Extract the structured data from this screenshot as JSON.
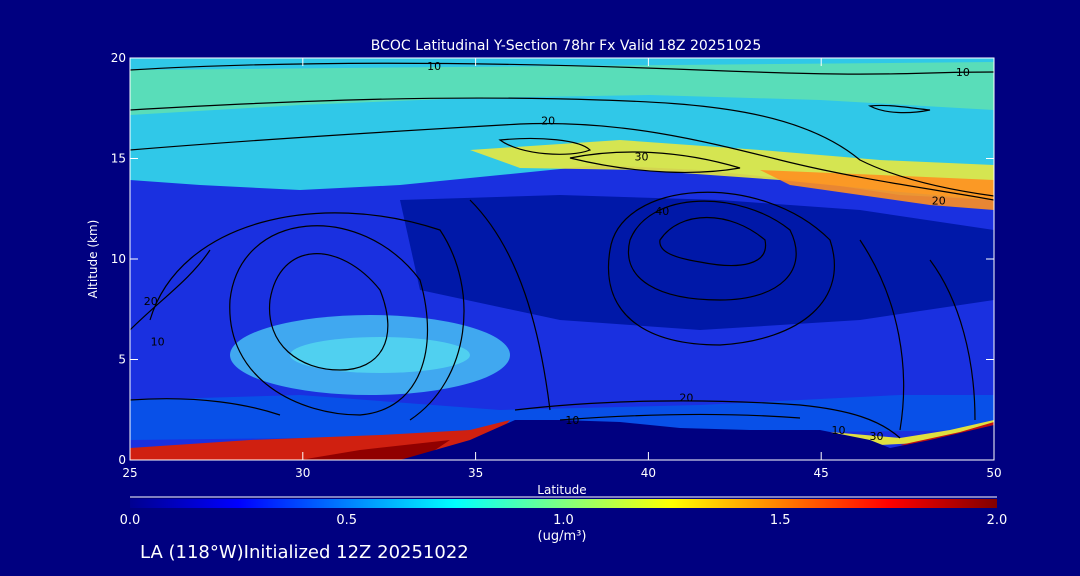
{
  "chart_data": {
    "type": "heatmap",
    "title": "BCOC Latitudinal Y-Section 78hr  Fx Valid 18Z 20251025",
    "xlabel": "Latitude",
    "ylabel": "Altitude (km)",
    "xlim": [
      25,
      50
    ],
    "ylim": [
      0,
      20
    ],
    "x_ticks": [
      25,
      30,
      35,
      40,
      45,
      50
    ],
    "y_ticks": [
      0,
      5,
      10,
      15,
      20
    ],
    "colorbar": {
      "min": 0.0,
      "max": 2.0,
      "ticks": [
        "0.0",
        "0.5",
        "1.0",
        "1.5",
        "2.0"
      ],
      "units": "(ug/m³)",
      "colors": [
        "#000090",
        "#0000ff",
        "#0080ff",
        "#00ffff",
        "#80ff80",
        "#ffff00",
        "#ff8000",
        "#ff0000",
        "#800000"
      ]
    },
    "contour_labels": [
      {
        "text": "10",
        "lat": 33.8,
        "alt": 19.6
      },
      {
        "text": "10",
        "lat": 49.1,
        "alt": 19.3
      },
      {
        "text": "20",
        "lat": 37.1,
        "alt": 16.9
      },
      {
        "text": "30",
        "lat": 39.8,
        "alt": 15.1
      },
      {
        "text": "40",
        "lat": 40.4,
        "alt": 12.4
      },
      {
        "text": "20",
        "lat": 48.4,
        "alt": 12.9
      },
      {
        "text": "20",
        "lat": 25.6,
        "alt": 7.9
      },
      {
        "text": "10",
        "lat": 25.8,
        "alt": 5.9
      },
      {
        "text": "10",
        "lat": 37.8,
        "alt": 2.0
      },
      {
        "text": "20",
        "lat": 41.1,
        "alt": 3.1
      },
      {
        "text": "10",
        "lat": 45.5,
        "alt": 1.5
      },
      {
        "text": "30",
        "lat": 46.6,
        "alt": 1.2
      }
    ]
  },
  "footer": {
    "station": "LA (118°W)Initialized 12Z 20251022"
  }
}
